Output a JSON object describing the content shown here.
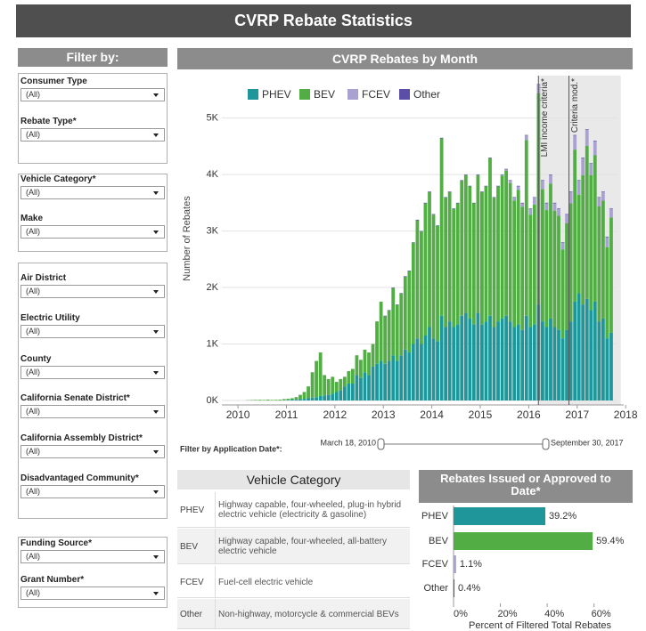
{
  "title": "CVRP Rebate Statistics",
  "filters": {
    "title": "Filter by:",
    "groups": [
      [
        {
          "label": "Consumer Type",
          "value": "(All)"
        },
        {
          "label": "Rebate Type*",
          "value": "(All)"
        }
      ],
      [
        {
          "label": "Vehicle Category*",
          "value": "(All)"
        },
        {
          "label": "Make",
          "value": "(All)"
        }
      ],
      [
        {
          "label": "Air District",
          "value": "(All)"
        },
        {
          "label": "Electric Utility",
          "value": "(All)"
        },
        {
          "label": "County",
          "value": "(All)"
        },
        {
          "label": "California Senate District*",
          "value": "(All)"
        },
        {
          "label": "California Assembly District*",
          "value": "(All)"
        },
        {
          "label": "Disadvantaged Community*",
          "value": "(All)"
        }
      ],
      [
        {
          "label": "Funding Source*",
          "value": "(All)"
        },
        {
          "label": "Grant Number*",
          "value": "(All)"
        }
      ]
    ]
  },
  "date_filter": {
    "label": "Filter by Application Date*:",
    "start": "March 18, 2010",
    "end": "September 30, 2017"
  },
  "vehicle_table": {
    "title": "Vehicle Category",
    "rows": [
      [
        "PHEV",
        "Highway capable, four-wheeled, plug-in hybrid electric vehicle (electricity & gasoline)"
      ],
      [
        "BEV",
        "Highway capable, four-wheeled, all-battery electric vehicle"
      ],
      [
        "FCEV",
        "Fuel-cell electric vehicle"
      ],
      [
        "Other",
        "Non-highway, motorcycle & commercial BEVs"
      ]
    ]
  },
  "chart_data": [
    {
      "type": "stacked_bar",
      "title": "CVRP Rebates by Month",
      "y_label": "Number of Rebates",
      "x": [
        2010.167,
        2010.25,
        2010.333,
        2010.417,
        2010.5,
        2010.583,
        2010.667,
        2010.75,
        2010.833,
        2010.917,
        2011,
        2011.083,
        2011.167,
        2011.25,
        2011.333,
        2011.417,
        2011.5,
        2011.583,
        2011.667,
        2011.75,
        2011.833,
        2011.917,
        2012,
        2012.083,
        2012.167,
        2012.25,
        2012.333,
        2012.417,
        2012.5,
        2012.583,
        2012.667,
        2012.75,
        2012.833,
        2012.917,
        2013,
        2013.083,
        2013.167,
        2013.25,
        2013.333,
        2013.417,
        2013.5,
        2013.583,
        2013.667,
        2013.75,
        2013.833,
        2013.917,
        2014,
        2014.083,
        2014.167,
        2014.25,
        2014.333,
        2014.417,
        2014.5,
        2014.583,
        2014.667,
        2014.75,
        2014.833,
        2014.917,
        2015,
        2015.083,
        2015.167,
        2015.25,
        2015.333,
        2015.417,
        2015.5,
        2015.583,
        2015.667,
        2015.75,
        2015.833,
        2015.917,
        2016,
        2016.083,
        2016.167,
        2016.25,
        2016.333,
        2016.417,
        2016.5,
        2016.583,
        2016.667,
        2016.75,
        2016.833,
        2016.917,
        2017,
        2017.083,
        2017.167,
        2017.25,
        2017.333,
        2017.417,
        2017.5,
        2017.583,
        2017.667
      ],
      "series": [
        {
          "name": "PHEV",
          "color": "#1f979a",
          "values": [
            0,
            0,
            0,
            0,
            0,
            0,
            0,
            0,
            0,
            5,
            10,
            15,
            20,
            25,
            30,
            40,
            50,
            60,
            80,
            90,
            100,
            120,
            150,
            180,
            250,
            300,
            300,
            450,
            400,
            500,
            450,
            600,
            650,
            700,
            650,
            700,
            800,
            700,
            800,
            900,
            850,
            1000,
            1100,
            1000,
            1150,
            1300,
            1100,
            1050,
            1500,
            1300,
            1400,
            1300,
            1350,
            1500,
            1550,
            1450,
            1350,
            1550,
            1350,
            1400,
            1500,
            1300,
            1400,
            1450,
            1500,
            1400,
            1300,
            1350,
            1250,
            1500,
            1300,
            1350,
            1700,
            1400,
            1300,
            1450,
            1300,
            1250,
            1100,
            1250,
            1400,
            1750,
            1900,
            1700,
            1800,
            1600,
            1750,
            1400,
            1450,
            1100,
            1200
          ]
        },
        {
          "name": "BEV",
          "color": "#52ad45",
          "values": [
            5,
            8,
            10,
            12,
            10,
            15,
            10,
            12,
            15,
            20,
            20,
            25,
            40,
            75,
            120,
            210,
            450,
            640,
            770,
            360,
            280,
            300,
            180,
            200,
            170,
            220,
            260,
            350,
            320,
            400,
            400,
            400,
            750,
            1050,
            840,
            890,
            1190,
            990,
            1090,
            1290,
            1440,
            1790,
            2090,
            1990,
            2340,
            2390,
            2190,
            2040,
            3140,
            2290,
            2290,
            2090,
            2140,
            2390,
            2440,
            2340,
            2140,
            2440,
            2340,
            2390,
            2790,
            2290,
            2390,
            2530,
            2570,
            2450,
            2240,
            2380,
            2180,
            3110,
            1990,
            2120,
            3740,
            2340,
            2070,
            2390,
            2060,
            2020,
            1570,
            1890,
            2090,
            2690,
            1740,
            2290,
            2710,
            2390,
            2590,
            2040,
            2090,
            1610,
            2040
          ]
        },
        {
          "name": "FCEV",
          "color": "#aaa1d3",
          "values": [
            0,
            0,
            0,
            0,
            0,
            0,
            0,
            0,
            0,
            0,
            0,
            0,
            0,
            0,
            0,
            0,
            0,
            0,
            0,
            0,
            0,
            0,
            0,
            0,
            0,
            0,
            0,
            0,
            0,
            0,
            0,
            0,
            0,
            0,
            0,
            0,
            0,
            0,
            0,
            0,
            0,
            0,
            0,
            0,
            0,
            0,
            0,
            0,
            0,
            0,
            0,
            0,
            0,
            0,
            0,
            0,
            0,
            0,
            0,
            0,
            0,
            0,
            0,
            10,
            20,
            40,
            50,
            60,
            60,
            80,
            100,
            120,
            150,
            150,
            120,
            150,
            130,
            120,
            120,
            150,
            200,
            250,
            250,
            300,
            280,
            200,
            250,
            150,
            150,
            180,
            150
          ]
        },
        {
          "name": "Other",
          "color": "#5b4ea6",
          "values": [
            0,
            0,
            0,
            0,
            0,
            0,
            0,
            0,
            0,
            0,
            0,
            0,
            0,
            0,
            0,
            0,
            0,
            0,
            0,
            0,
            0,
            0,
            0,
            0,
            0,
            0,
            0,
            0,
            0,
            0,
            0,
            0,
            0,
            0,
            10,
            10,
            10,
            10,
            10,
            10,
            10,
            10,
            10,
            10,
            10,
            10,
            10,
            10,
            10,
            10,
            10,
            10,
            10,
            10,
            10,
            10,
            10,
            10,
            10,
            10,
            10,
            10,
            10,
            10,
            10,
            10,
            10,
            10,
            10,
            10,
            10,
            10,
            10,
            10,
            10,
            10,
            10,
            10,
            10,
            10,
            10,
            10,
            10,
            10,
            10,
            10,
            10,
            10,
            10,
            10,
            10
          ]
        }
      ],
      "xlim": [
        2009.41,
        2018.1
      ],
      "xticks": [
        2010,
        2011,
        2012,
        2013,
        2014,
        2015,
        2016,
        2017,
        2018
      ],
      "ylim": [
        0,
        5750
      ],
      "yticks": [
        {
          "value": 0,
          "label": "0K"
        },
        {
          "value": 1000,
          "label": "1K"
        },
        {
          "value": 2000,
          "label": "2K"
        },
        {
          "value": 3000,
          "label": "3K"
        },
        {
          "value": 4000,
          "label": "4K"
        },
        {
          "value": 5000,
          "label": "5K"
        }
      ],
      "grid": true,
      "shade": [
        2016.2,
        2017.9
      ],
      "annotations": [
        {
          "text": "LMI income criteria*",
          "x": 2016.2
        },
        {
          "text": "Criteria mod.*",
          "x": 2016.83
        }
      ]
    },
    {
      "type": "hbar",
      "title": "Rebates Issued or Approved to Date*",
      "x_label": "Percent of Filtered Total Rebates",
      "categories": [
        "PHEV",
        "BEV",
        "FCEV",
        "Other"
      ],
      "values": [
        39.2,
        59.4,
        1.1,
        0.4
      ],
      "value_labels": [
        "39.2%",
        "59.4%",
        "1.1%",
        "0.4%"
      ],
      "colors": [
        "#1f979a",
        "#52ad45",
        "#aaa1d3",
        "#5b4ea6"
      ],
      "xlim": [
        0,
        78
      ],
      "xticks": [
        {
          "value": 0,
          "label": "0%"
        },
        {
          "value": 20,
          "label": "20%"
        },
        {
          "value": 40,
          "label": "40%"
        },
        {
          "value": 60,
          "label": "60%"
        }
      ]
    }
  ]
}
